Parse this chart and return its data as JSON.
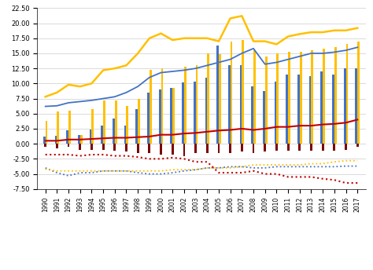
{
  "years": [
    1990,
    1991,
    1992,
    1993,
    1994,
    1995,
    1996,
    1997,
    1998,
    1999,
    2000,
    2001,
    2002,
    2003,
    2004,
    2005,
    2006,
    2007,
    2008,
    2009,
    2010,
    2011,
    2012,
    2013,
    2014,
    2015,
    2016,
    2017
  ],
  "RTB_USA": [
    1.2,
    1.3,
    2.2,
    1.4,
    2.4,
    3.0,
    4.2,
    3.0,
    5.8,
    8.5,
    9.0,
    9.3,
    10.2,
    10.3,
    11.0,
    16.3,
    13.0,
    13.0,
    9.5,
    8.7,
    10.3,
    11.5,
    11.5,
    11.2,
    12.0,
    11.5,
    12.5,
    12.5
  ],
  "RTB_UK": [
    3.8,
    5.3,
    5.5,
    1.4,
    5.8,
    7.2,
    7.2,
    6.3,
    7.5,
    12.3,
    12.5,
    9.3,
    12.8,
    13.0,
    15.0,
    14.8,
    17.0,
    17.2,
    15.5,
    14.5,
    15.0,
    15.3,
    15.2,
    15.5,
    15.8,
    16.0,
    16.5,
    17.0
  ],
  "RTB_China": [
    -0.5,
    -0.7,
    -0.5,
    -1.0,
    -1.0,
    -1.0,
    -1.2,
    -1.3,
    -1.5,
    -1.5,
    -1.8,
    -1.8,
    -2.0,
    -1.5,
    -1.5,
    -1.5,
    -1.5,
    -1.3,
    -1.5,
    -1.3,
    -1.2,
    -1.2,
    -1.2,
    -1.2,
    -1.2,
    -1.2,
    -1.0,
    -0.5
  ],
  "X_USA": [
    -4.0,
    -4.8,
    -5.3,
    -4.8,
    -4.8,
    -4.5,
    -4.5,
    -4.5,
    -4.8,
    -5.0,
    -5.0,
    -4.8,
    -4.5,
    -4.3,
    -4.0,
    -4.0,
    -3.8,
    -3.8,
    -4.0,
    -4.0,
    -3.8,
    -3.8,
    -3.8,
    -3.8,
    -3.8,
    -3.8,
    -3.7,
    -3.7
  ],
  "M_USA": [
    6.2,
    6.3,
    6.8,
    7.0,
    7.2,
    7.5,
    7.8,
    8.5,
    9.5,
    11.0,
    11.8,
    12.0,
    12.2,
    12.5,
    13.0,
    13.5,
    14.0,
    15.0,
    15.8,
    13.2,
    13.5,
    14.0,
    14.5,
    15.0,
    15.0,
    15.2,
    15.5,
    16.0
  ],
  "X_UK": [
    -4.2,
    -4.5,
    -4.5,
    -4.5,
    -4.5,
    -4.5,
    -4.5,
    -4.5,
    -4.5,
    -4.5,
    -4.5,
    -4.3,
    -4.3,
    -4.3,
    -4.0,
    -4.0,
    -4.0,
    -3.8,
    -3.5,
    -3.5,
    -3.5,
    -3.5,
    -3.5,
    -3.3,
    -3.3,
    -3.0,
    -2.8,
    -2.8
  ],
  "M_UK": [
    7.8,
    8.5,
    9.8,
    9.5,
    10.0,
    12.2,
    12.5,
    13.0,
    15.0,
    17.5,
    18.3,
    17.2,
    17.5,
    17.5,
    17.5,
    17.0,
    20.8,
    21.2,
    17.0,
    17.0,
    16.5,
    17.8,
    18.2,
    18.5,
    18.5,
    18.8,
    18.8,
    19.2
  ],
  "X_China": [
    -1.8,
    -1.8,
    -1.8,
    -2.0,
    -1.8,
    -1.8,
    -2.0,
    -2.0,
    -2.2,
    -2.5,
    -2.5,
    -2.3,
    -2.5,
    -3.0,
    -3.0,
    -4.8,
    -4.8,
    -4.8,
    -4.5,
    -5.0,
    -5.0,
    -5.5,
    -5.5,
    -5.5,
    -5.8,
    -6.0,
    -6.5,
    -6.5
  ],
  "M_China": [
    0.5,
    0.5,
    0.7,
    0.7,
    0.8,
    0.9,
    1.0,
    1.0,
    1.1,
    1.2,
    1.5,
    1.5,
    1.7,
    1.8,
    2.0,
    2.2,
    2.3,
    2.5,
    2.3,
    2.5,
    2.8,
    2.8,
    3.0,
    3.0,
    3.2,
    3.3,
    3.5,
    4.0
  ],
  "color_RTB_USA": "#4472C4",
  "color_RTB_UK": "#FFC000",
  "color_RTB_China": "#7B0000",
  "color_X_USA": "#4472C4",
  "color_M_USA": "#4472C4",
  "color_X_UK": "#FFC000",
  "color_M_UK": "#FFC000",
  "color_X_China": "#C00000",
  "color_M_China": "#C00000",
  "ylim": [
    -7.5,
    22.5
  ],
  "yticks": [
    -7.5,
    -5.0,
    -2.5,
    0.0,
    2.5,
    5.0,
    7.5,
    10.0,
    12.5,
    15.0,
    17.5,
    20.0,
    22.5
  ],
  "background_color": "#FFFFFF"
}
